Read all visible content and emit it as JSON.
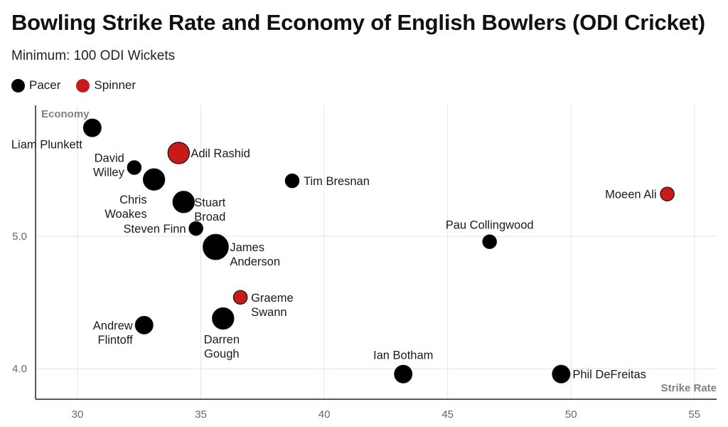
{
  "chart_data": {
    "type": "scatter",
    "title": "Bowling Strike Rate and Economy of English Bowlers (ODI Cricket)",
    "subtitle": "Minimum: 100 ODI Wickets",
    "xlabel": "Strike Rate",
    "ylabel": "Economy",
    "xlim": [
      28.3,
      55.9
    ],
    "ylim": [
      3.77,
      5.99
    ],
    "x_ticks": [
      30,
      35,
      40,
      45,
      50,
      55
    ],
    "y_ticks": [
      4.0,
      5.0
    ],
    "y_tick_labels": [
      "4.0",
      "5.0"
    ],
    "grid": true,
    "legend_position": "top-left",
    "legend": [
      {
        "name": "Pacer",
        "color": "#000000"
      },
      {
        "name": "Spinner",
        "color": "#c8191b"
      }
    ],
    "points": [
      {
        "name": "Liam Plunkett",
        "lines": [
          "Liam Plunkett"
        ],
        "x": 30.6,
        "y": 5.82,
        "size": 2,
        "type": "Pacer"
      },
      {
        "name": "Adil Rashid",
        "lines": [
          "Adil Rashid"
        ],
        "x": 34.1,
        "y": 5.63,
        "size": 3,
        "type": "Spinner"
      },
      {
        "name": "David Willey",
        "lines": [
          "David",
          "Willey"
        ],
        "x": 32.3,
        "y": 5.52,
        "size": 1,
        "type": "Pacer"
      },
      {
        "name": "Chris Woakes",
        "lines": [
          "Chris",
          "Woakes"
        ],
        "x": 33.1,
        "y": 5.43,
        "size": 3,
        "type": "Pacer"
      },
      {
        "name": "Tim Bresnan",
        "lines": [
          "Tim Bresnan"
        ],
        "x": 38.7,
        "y": 5.42,
        "size": 1,
        "type": "Pacer"
      },
      {
        "name": "Moeen Ali",
        "lines": [
          "Moeen Ali"
        ],
        "x": 53.9,
        "y": 5.32,
        "size": 1,
        "type": "Spinner"
      },
      {
        "name": "Stuart Broad",
        "lines": [
          "Stuart",
          "Broad"
        ],
        "x": 34.3,
        "y": 5.26,
        "size": 3,
        "type": "Pacer"
      },
      {
        "name": "Steven Finn",
        "lines": [
          "Steven Finn"
        ],
        "x": 34.8,
        "y": 5.06,
        "size": 1,
        "type": "Pacer"
      },
      {
        "name": "Pau Collingwood",
        "lines": [
          "Pau Collingwood"
        ],
        "x": 46.7,
        "y": 4.96,
        "size": 1,
        "type": "Pacer"
      },
      {
        "name": "James Anderson",
        "lines": [
          "James",
          "Anderson"
        ],
        "x": 35.6,
        "y": 4.92,
        "size": 4,
        "type": "Pacer"
      },
      {
        "name": "Graeme Swann",
        "lines": [
          "Graeme",
          "Swann"
        ],
        "x": 36.6,
        "y": 4.54,
        "size": 1,
        "type": "Spinner"
      },
      {
        "name": "Darren Gough",
        "lines": [
          "Darren",
          "Gough"
        ],
        "x": 35.9,
        "y": 4.38,
        "size": 3,
        "type": "Pacer"
      },
      {
        "name": "Andrew Flintoff",
        "lines": [
          "Andrew",
          "Flintoff"
        ],
        "x": 32.7,
        "y": 4.33,
        "size": 2,
        "type": "Pacer"
      },
      {
        "name": "Ian Botham",
        "lines": [
          "Ian Botham"
        ],
        "x": 43.2,
        "y": 3.96,
        "size": 2,
        "type": "Pacer"
      },
      {
        "name": "Phil DeFreitas",
        "lines": [
          "Phil DeFreitas"
        ],
        "x": 49.6,
        "y": 3.96,
        "size": 2,
        "type": "Pacer"
      }
    ]
  }
}
